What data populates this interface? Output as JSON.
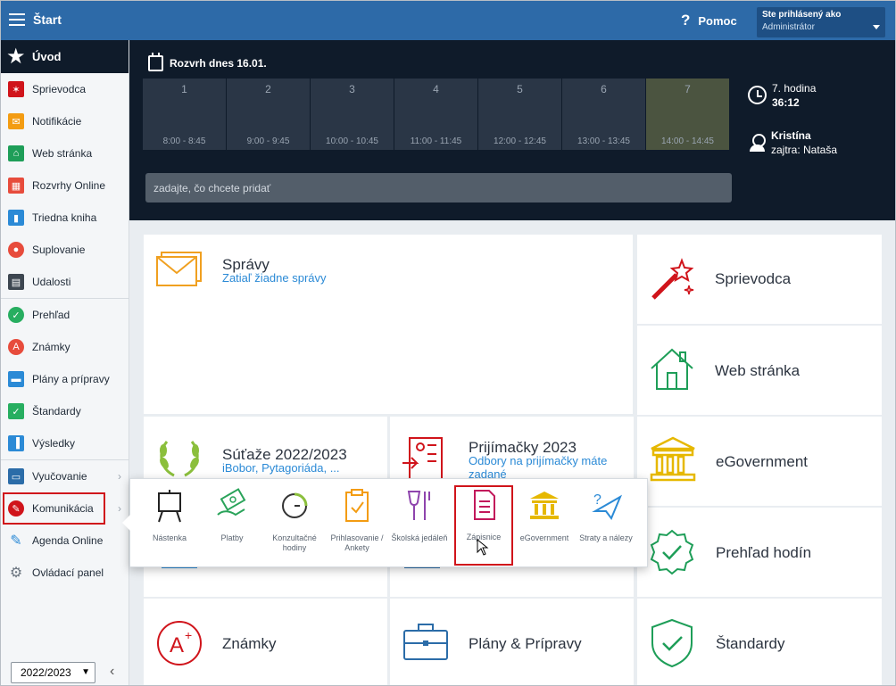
{
  "topbar": {
    "title": "Štart",
    "help_label": "Pomoc",
    "user_line1": "Ste prihlásený ako",
    "user_line2": "Administrátor"
  },
  "sidebar": {
    "home_label": "Úvod",
    "items": [
      {
        "label": "Sprievodca",
        "icon": "magic-wand-icon",
        "color": "#d0141b"
      },
      {
        "label": "Notifikácie",
        "icon": "envelope-icon",
        "color": "#f39c12"
      },
      {
        "label": "Web stránka",
        "icon": "house-icon",
        "color": "#1e9e58"
      },
      {
        "label": "Rozvrhy Online",
        "icon": "calendar-grid-icon",
        "color": "#e74c3c"
      },
      {
        "label": "Triedna kniha",
        "icon": "book-icon",
        "color": "#2b8ad6"
      },
      {
        "label": "Suplovanie",
        "icon": "person-swap-icon",
        "color": "#e74c3c"
      },
      {
        "label": "Udalosti",
        "icon": "calendar-icon",
        "color": "#3d4650"
      },
      {
        "label": "Prehľad",
        "icon": "check-circle-icon",
        "color": "#27ae60"
      },
      {
        "label": "Známky",
        "icon": "grade-icon",
        "color": "#e74c3c"
      },
      {
        "label": "Plány a prípravy",
        "icon": "briefcase-icon",
        "color": "#2b8ad6"
      },
      {
        "label": "Štandardy",
        "icon": "shield-check-icon",
        "color": "#27ae60"
      },
      {
        "label": "Výsledky",
        "icon": "bar-chart-icon",
        "color": "#2b8ad6"
      },
      {
        "label": "Vyučovanie",
        "icon": "open-book-icon",
        "color": "#2b6ca8"
      },
      {
        "label": "Komunikácia",
        "icon": "chat-icon",
        "color": "#d0141b"
      },
      {
        "label": "Agenda Online",
        "icon": "pen-icon",
        "color": "#2b8ad6"
      },
      {
        "label": "Ovládací panel",
        "icon": "gear-icon",
        "color": "#6b7580"
      }
    ],
    "year_select": "2022/2023"
  },
  "schedule": {
    "title": "Rozvrh dnes 16.01.",
    "periods": [
      {
        "num": "1",
        "time": "8:00 - 8:45"
      },
      {
        "num": "2",
        "time": "9:00 - 9:45"
      },
      {
        "num": "3",
        "time": "10:00 - 10:45"
      },
      {
        "num": "4",
        "time": "11:00 - 11:45"
      },
      {
        "num": "5",
        "time": "12:00 - 12:45"
      },
      {
        "num": "6",
        "time": "13:00 - 13:45"
      },
      {
        "num": "7",
        "time": "14:00 - 14:45"
      }
    ],
    "input_placeholder": "zadajte, čo chcete pridať",
    "hour_label": "7. hodina",
    "hour_remaining": "36:12",
    "teacher_name": "Kristína",
    "teacher_tomorrow": "zajtra: Nataša"
  },
  "tiles": {
    "spravy": {
      "label": "Správy",
      "sub": "Zatiaľ žiadne správy"
    },
    "sprievodca": {
      "label": "Sprievodca"
    },
    "web": {
      "label": "Web stránka"
    },
    "sutaze": {
      "label": "Súťaže 2022/2023",
      "sub": "iBobor, Pytagoriáda, ..."
    },
    "prijimacky": {
      "label": "Prijímačky 2023",
      "sub": "Odbory na prijímačky máte zadané"
    },
    "egov": {
      "label": "eGovernment"
    },
    "hodiny": {
      "label": "Prehľad hodín"
    },
    "znamky": {
      "label": "Známky"
    },
    "plany": {
      "label": "Plány & Prípravy"
    },
    "standardy": {
      "label": "Štandardy"
    }
  },
  "popup": {
    "items": [
      {
        "label": "Nástenka"
      },
      {
        "label": "Platby"
      },
      {
        "label": "Konzultačné hodiny"
      },
      {
        "label": "Prihlasovanie / Ankety"
      },
      {
        "label": "Školská jedáleň"
      },
      {
        "label": "Zápisnice"
      },
      {
        "label": "eGovernment"
      },
      {
        "label": "Straty a nálezy"
      }
    ]
  }
}
